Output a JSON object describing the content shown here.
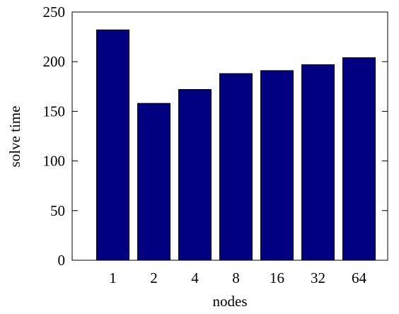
{
  "chart_data": {
    "type": "bar",
    "categories": [
      "1",
      "2",
      "4",
      "8",
      "16",
      "32",
      "64"
    ],
    "values": [
      232,
      158,
      172,
      188,
      191,
      197,
      204
    ],
    "xlabel": "nodes",
    "ylabel": "solve time",
    "ylim": [
      0,
      250
    ],
    "yticks": [
      0,
      50,
      100,
      150,
      200,
      250
    ],
    "grid": false,
    "bar_color": "#000080"
  }
}
